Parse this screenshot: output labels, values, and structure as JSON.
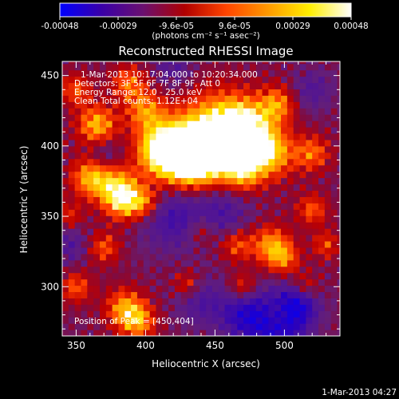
{
  "colorbar": {
    "ticks": [
      "-0.00048",
      "-0.00029",
      "-9.6e-05",
      "9.6e-05",
      "0.00029",
      "0.00048"
    ],
    "units_label": "(photons cm⁻² s⁻¹ asec⁻²)",
    "colors": [
      "#0000ff",
      "#3a00a8",
      "#6a1070",
      "#b00000",
      "#ff4400",
      "#ff9900",
      "#ffee00",
      "#ffffff"
    ]
  },
  "chart_data": {
    "type": "heatmap",
    "title": "Reconstructed RHESSI Image",
    "xlabel": "Heliocentric X (arcsec)",
    "ylabel": "Heliocentric Y (arcsec)",
    "xlim": [
      340,
      540
    ],
    "ylim": [
      265,
      460
    ],
    "xticks": [
      "350",
      "400",
      "450",
      "500"
    ],
    "yticks": [
      "300",
      "350",
      "400",
      "450"
    ],
    "peak_position": [
      450,
      404
    ],
    "color_range": [
      -0.00048,
      0.00048
    ]
  },
  "annotations": {
    "time_range": "1-Mar-2013 10:17:04.000 to 10:20:34.000",
    "detectors": "Detectors: 3F 5F 6F 7F 8F 9F, Att 0",
    "energy": "Energy Range: 12.0 - 25.0 keV",
    "clean": "Clean      Total counts: 1.12E+04",
    "peak": "Position of Peak = [450,404]"
  },
  "footer": {
    "timestamp": "1-Mar-2013 04:27"
  }
}
